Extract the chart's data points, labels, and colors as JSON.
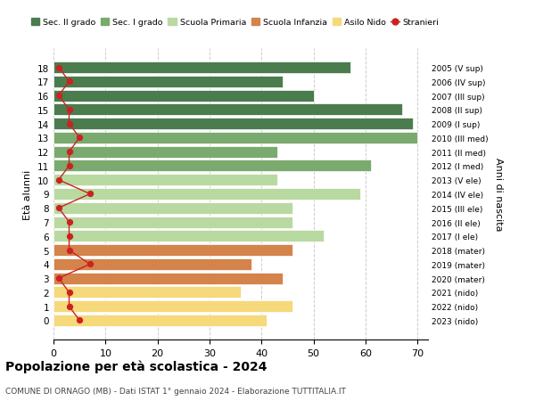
{
  "ages": [
    18,
    17,
    16,
    15,
    14,
    13,
    12,
    11,
    10,
    9,
    8,
    7,
    6,
    5,
    4,
    3,
    2,
    1,
    0
  ],
  "values": [
    57,
    44,
    50,
    67,
    69,
    70,
    43,
    61,
    43,
    59,
    46,
    46,
    52,
    46,
    38,
    44,
    36,
    46,
    41
  ],
  "bar_colors": [
    "#4a7c4e",
    "#4a7c4e",
    "#4a7c4e",
    "#4a7c4e",
    "#4a7c4e",
    "#7aaa6d",
    "#7aaa6d",
    "#7aaa6d",
    "#b8d9a0",
    "#b8d9a0",
    "#b8d9a0",
    "#b8d9a0",
    "#b8d9a0",
    "#d4834a",
    "#d4834a",
    "#d4834a",
    "#f5d97a",
    "#f5d97a",
    "#f5d97a"
  ],
  "right_labels": [
    "2005 (V sup)",
    "2006 (IV sup)",
    "2007 (III sup)",
    "2008 (II sup)",
    "2009 (I sup)",
    "2010 (III med)",
    "2011 (II med)",
    "2012 (I med)",
    "2013 (V ele)",
    "2014 (IV ele)",
    "2015 (III ele)",
    "2016 (II ele)",
    "2017 (I ele)",
    "2018 (mater)",
    "2019 (mater)",
    "2020 (mater)",
    "2021 (nido)",
    "2022 (nido)",
    "2023 (nido)"
  ],
  "stranieri": [
    1,
    3,
    1,
    3,
    3,
    5,
    3,
    3,
    1,
    7,
    1,
    3,
    3,
    3,
    7,
    1,
    3,
    3,
    5
  ],
  "title": "Popolazione per età scolastica - 2024",
  "subtitle": "COMUNE DI ORNAGO (MB) - Dati ISTAT 1° gennaio 2024 - Elaborazione TUTTITALIA.IT",
  "ylabel": "Età alunni",
  "right_ylabel": "Anni di nascita",
  "legend_items": [
    {
      "label": "Sec. II grado",
      "color": "#4a7c4e"
    },
    {
      "label": "Sec. I grado",
      "color": "#7aaa6d"
    },
    {
      "label": "Scuola Primaria",
      "color": "#b8d9a0"
    },
    {
      "label": "Scuola Infanzia",
      "color": "#d4834a"
    },
    {
      "label": "Asilo Nido",
      "color": "#f5d97a"
    },
    {
      "label": "Stranieri",
      "color": "#cc2222"
    }
  ],
  "xlim": [
    0,
    72
  ],
  "xticks": [
    0,
    10,
    20,
    30,
    40,
    50,
    60,
    70
  ],
  "background_color": "#ffffff",
  "grid_color": "#cccccc"
}
